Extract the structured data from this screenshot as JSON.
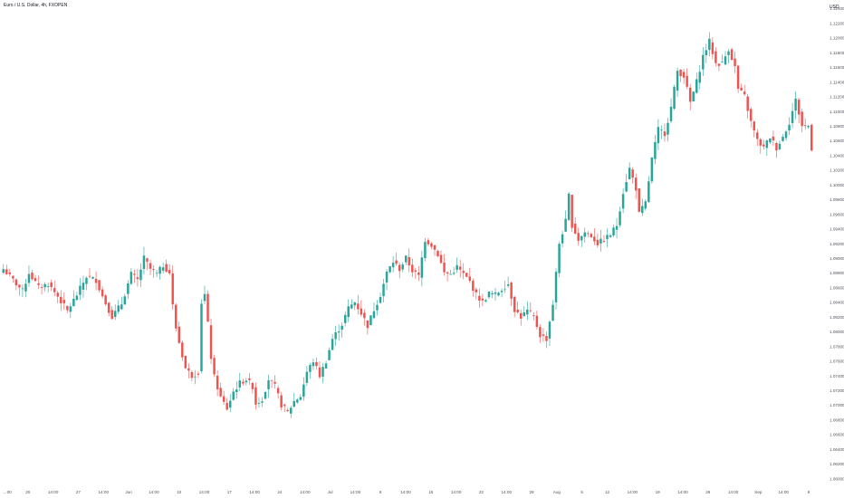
{
  "header": {
    "symbol_title": "Euro / U.S. Dollar, 4h, FXOPEN",
    "currency": "USD"
  },
  "colors": {
    "up": "#26a69a",
    "down": "#ef5350",
    "text": "#131722",
    "axis_text": "#50535e",
    "background": "#ffffff"
  },
  "chart_data": {
    "type": "candlestick",
    "title": "Euro / U.S. Dollar, 4h, FXOPEN",
    "y_axis_ticks": [
      "1.12400",
      "1.12200",
      "1.12000",
      "1.11800",
      "1.11600",
      "1.11400",
      "1.11200",
      "1.11000",
      "1.10800",
      "1.10600",
      "1.10400",
      "1.10200",
      "1.10000",
      "1.09800",
      "1.09600",
      "1.09400",
      "1.09200",
      "1.09000",
      "1.08800",
      "1.08600",
      "1.08400",
      "1.08200",
      "1.08000",
      "1.07800",
      "1.07600",
      "1.07400",
      "1.07200",
      "1.07000",
      "1.06800",
      "1.06600",
      "1.06400",
      "1.06200",
      "1.06000"
    ],
    "ylim": [
      1.0593,
      1.1244
    ],
    "y_axis_side": "right",
    "x_axis_ticks": [
      "…00",
      "20",
      "14:00",
      "27",
      "14:00",
      "Jun",
      "14:00",
      "10",
      "14:00",
      "17",
      "14:00",
      "24",
      "14:00",
      "Jul",
      "14:00",
      "8",
      "14:00",
      "15",
      "14:00",
      "22",
      "14:00",
      "29",
      "Aug",
      "5",
      "12",
      "14:00",
      "19",
      "14:00",
      "26",
      "14:00",
      "Sep",
      "14:00",
      "9"
    ],
    "grid": false,
    "legend": "none",
    "period": "4h",
    "ohlc_anchors": [
      {
        "i": 0,
        "close": 1.0885
      },
      {
        "i": 3,
        "close": 1.087
      },
      {
        "i": 6,
        "close": 1.0855
      },
      {
        "i": 8,
        "close": 1.088
      },
      {
        "i": 11,
        "close": 1.086
      },
      {
        "i": 14,
        "close": 1.0865
      },
      {
        "i": 17,
        "close": 1.0848
      },
      {
        "i": 20,
        "close": 1.0828
      },
      {
        "i": 23,
        "close": 1.085
      },
      {
        "i": 26,
        "close": 1.0875
      },
      {
        "i": 29,
        "close": 1.087
      },
      {
        "i": 31,
        "close": 1.0848
      },
      {
        "i": 34,
        "close": 1.082
      },
      {
        "i": 37,
        "close": 1.0838
      },
      {
        "i": 40,
        "close": 1.0878
      },
      {
        "i": 42,
        "close": 1.087
      },
      {
        "i": 44,
        "close": 1.09
      },
      {
        "i": 46,
        "close": 1.0885
      },
      {
        "i": 48,
        "close": 1.0878
      },
      {
        "i": 50,
        "close": 1.089
      },
      {
        "i": 52,
        "close": 1.088
      },
      {
        "i": 53,
        "close": 1.0835
      },
      {
        "i": 54,
        "close": 1.0805
      },
      {
        "i": 55,
        "close": 1.0785
      },
      {
        "i": 57,
        "close": 1.075
      },
      {
        "i": 59,
        "close": 1.074
      },
      {
        "i": 61,
        "close": 1.0745
      },
      {
        "i": 62,
        "close": 1.084
      },
      {
        "i": 63,
        "close": 1.085
      },
      {
        "i": 64,
        "close": 1.081
      },
      {
        "i": 65,
        "close": 1.0765
      },
      {
        "i": 66,
        "close": 1.0738
      },
      {
        "i": 68,
        "close": 1.071
      },
      {
        "i": 70,
        "close": 1.0695
      },
      {
        "i": 72,
        "close": 1.0718
      },
      {
        "i": 74,
        "close": 1.073
      },
      {
        "i": 76,
        "close": 1.0735
      },
      {
        "i": 78,
        "close": 1.0725
      },
      {
        "i": 79,
        "close": 1.0702
      },
      {
        "i": 81,
        "close": 1.0708
      },
      {
        "i": 83,
        "close": 1.0735
      },
      {
        "i": 85,
        "close": 1.0725
      },
      {
        "i": 87,
        "close": 1.07
      },
      {
        "i": 89,
        "close": 1.069
      },
      {
        "i": 91,
        "close": 1.0705
      },
      {
        "i": 93,
        "close": 1.0712
      },
      {
        "i": 95,
        "close": 1.0745
      },
      {
        "i": 97,
        "close": 1.076
      },
      {
        "i": 99,
        "close": 1.074
      },
      {
        "i": 101,
        "close": 1.076
      },
      {
        "i": 103,
        "close": 1.079
      },
      {
        "i": 106,
        "close": 1.081
      },
      {
        "i": 108,
        "close": 1.0832
      },
      {
        "i": 110,
        "close": 1.084
      },
      {
        "i": 112,
        "close": 1.0825
      },
      {
        "i": 114,
        "close": 1.0808
      },
      {
        "i": 116,
        "close": 1.083
      },
      {
        "i": 118,
        "close": 1.085
      },
      {
        "i": 120,
        "close": 1.088
      },
      {
        "i": 122,
        "close": 1.0895
      },
      {
        "i": 124,
        "close": 1.0885
      },
      {
        "i": 126,
        "close": 1.09
      },
      {
        "i": 128,
        "close": 1.0883
      },
      {
        "i": 130,
        "close": 1.0875
      },
      {
        "i": 132,
        "close": 1.0925
      },
      {
        "i": 134,
        "close": 1.0918
      },
      {
        "i": 136,
        "close": 1.0905
      },
      {
        "i": 138,
        "close": 1.088
      },
      {
        "i": 140,
        "close": 1.0878
      },
      {
        "i": 142,
        "close": 1.0888
      },
      {
        "i": 144,
        "close": 1.0878
      },
      {
        "i": 146,
        "close": 1.0868
      },
      {
        "i": 148,
        "close": 1.085
      },
      {
        "i": 150,
        "close": 1.084
      },
      {
        "i": 152,
        "close": 1.0852
      },
      {
        "i": 154,
        "close": 1.085
      },
      {
        "i": 156,
        "close": 1.0858
      },
      {
        "i": 158,
        "close": 1.0865
      },
      {
        "i": 160,
        "close": 1.083
      },
      {
        "i": 162,
        "close": 1.082
      },
      {
        "i": 164,
        "close": 1.0828
      },
      {
        "i": 166,
        "close": 1.082
      },
      {
        "i": 168,
        "close": 1.0795
      },
      {
        "i": 170,
        "close": 1.079
      },
      {
        "i": 172,
        "close": 1.0838
      },
      {
        "i": 174,
        "close": 1.092
      },
      {
        "i": 176,
        "close": 1.095
      },
      {
        "i": 177,
        "close": 1.0985
      },
      {
        "i": 178,
        "close": 1.0945
      },
      {
        "i": 180,
        "close": 1.0925
      },
      {
        "i": 182,
        "close": 1.0935
      },
      {
        "i": 184,
        "close": 1.093
      },
      {
        "i": 186,
        "close": 1.092
      },
      {
        "i": 188,
        "close": 1.0925
      },
      {
        "i": 190,
        "close": 1.0932
      },
      {
        "i": 192,
        "close": 1.0945
      },
      {
        "i": 194,
        "close": 1.099
      },
      {
        "i": 196,
        "close": 1.1022
      },
      {
        "i": 198,
        "close": 1.0995
      },
      {
        "i": 199,
        "close": 1.096
      },
      {
        "i": 201,
        "close": 1.0975
      },
      {
        "i": 203,
        "close": 1.1035
      },
      {
        "i": 205,
        "close": 1.1075
      },
      {
        "i": 207,
        "close": 1.107
      },
      {
        "i": 209,
        "close": 1.1105
      },
      {
        "i": 211,
        "close": 1.1155
      },
      {
        "i": 213,
        "close": 1.1148
      },
      {
        "i": 214,
        "close": 1.113
      },
      {
        "i": 215,
        "close": 1.1112
      },
      {
        "i": 217,
        "close": 1.114
      },
      {
        "i": 219,
        "close": 1.1175
      },
      {
        "i": 221,
        "close": 1.1195
      },
      {
        "i": 223,
        "close": 1.1165
      },
      {
        "i": 225,
        "close": 1.1165
      },
      {
        "i": 227,
        "close": 1.1185
      },
      {
        "i": 229,
        "close": 1.116
      },
      {
        "i": 230,
        "close": 1.113
      },
      {
        "i": 232,
        "close": 1.112
      },
      {
        "i": 234,
        "close": 1.1085
      },
      {
        "i": 236,
        "close": 1.106
      },
      {
        "i": 238,
        "close": 1.105
      },
      {
        "i": 240,
        "close": 1.1065
      },
      {
        "i": 242,
        "close": 1.105
      },
      {
        "i": 244,
        "close": 1.1065
      },
      {
        "i": 246,
        "close": 1.1085
      },
      {
        "i": 248,
        "close": 1.1115
      },
      {
        "i": 250,
        "close": 1.108
      },
      {
        "i": 252,
        "close": 1.108
      },
      {
        "i": 253,
        "close": 1.105
      }
    ]
  }
}
